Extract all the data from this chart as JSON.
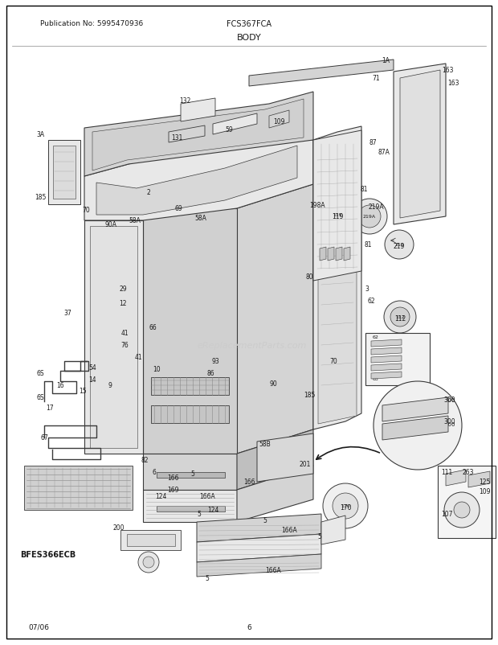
{
  "title": "BODY",
  "pub_no": "Publication No: 5995470936",
  "model": "FCS367FCA",
  "date": "07/06",
  "page": "6",
  "footer_label": "BFES366ECB",
  "bg_color": "#ffffff",
  "border_color": "#000000",
  "line_color": "#3a3a3a",
  "figsize": [
    6.2,
    8.03
  ],
  "dpi": 100,
  "watermark": "eReplacementParts.com"
}
